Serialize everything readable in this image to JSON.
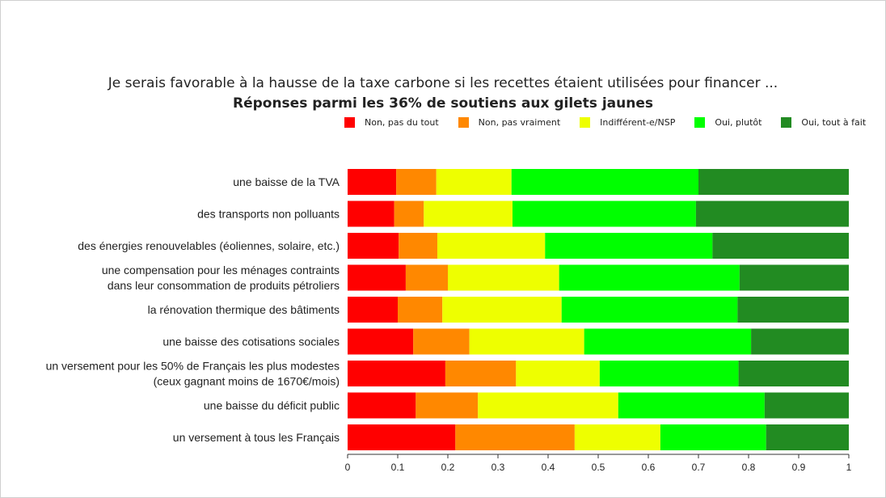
{
  "chart_data": {
    "type": "bar",
    "orientation": "horizontal",
    "stacked": true,
    "title": "Je serais favorable à la hausse de la taxe carbone si les recettes étaient utilisées pour financer ...",
    "subtitle": "Réponses parmi les 36% de soutiens aux gilets jaunes",
    "xlim": [
      0,
      1
    ],
    "xticks": [
      "0",
      "0.1",
      "0.2",
      "0.3",
      "0.4",
      "0.5",
      "0.6",
      "0.7",
      "0.8",
      "0.9",
      "1"
    ],
    "legend_position": "top-right",
    "categories": [
      [
        "une baisse de la TVA"
      ],
      [
        "des transports non polluants"
      ],
      [
        "des énergies renouvelables (éoliennes, solaire, etc.)"
      ],
      [
        "une compensation pour les ménages contraints",
        "dans leur consommation de produits pétroliers"
      ],
      [
        "la rénovation thermique des bâtiments"
      ],
      [
        "une baisse des cotisations sociales"
      ],
      [
        "un versement pour les 50% de Français les plus modestes",
        "(ceux gagnant moins de 1670€/mois)"
      ],
      [
        "une baisse du déficit public"
      ],
      [
        "un versement à tous les Français"
      ]
    ],
    "series": [
      {
        "name": "Non, pas du tout",
        "color": "#ff0000",
        "values": [
          0.097,
          0.093,
          0.102,
          0.116,
          0.1,
          0.131,
          0.195,
          0.136,
          0.215
        ]
      },
      {
        "name": "Non, pas vraiment",
        "color": "#ff8800",
        "values": [
          0.08,
          0.059,
          0.077,
          0.084,
          0.089,
          0.112,
          0.141,
          0.124,
          0.238
        ]
      },
      {
        "name": "Indifférent-e/NSP",
        "color": "#eeff00",
        "values": [
          0.15,
          0.177,
          0.215,
          0.222,
          0.238,
          0.229,
          0.167,
          0.28,
          0.171
        ]
      },
      {
        "name": "Oui, plutôt",
        "color": "#00ff00",
        "values": [
          0.373,
          0.366,
          0.334,
          0.36,
          0.351,
          0.333,
          0.277,
          0.292,
          0.211
        ]
      },
      {
        "name": "Oui, tout à fait",
        "color": "#228b22",
        "values": [
          0.3,
          0.305,
          0.272,
          0.218,
          0.222,
          0.195,
          0.22,
          0.168,
          0.165
        ]
      }
    ]
  }
}
